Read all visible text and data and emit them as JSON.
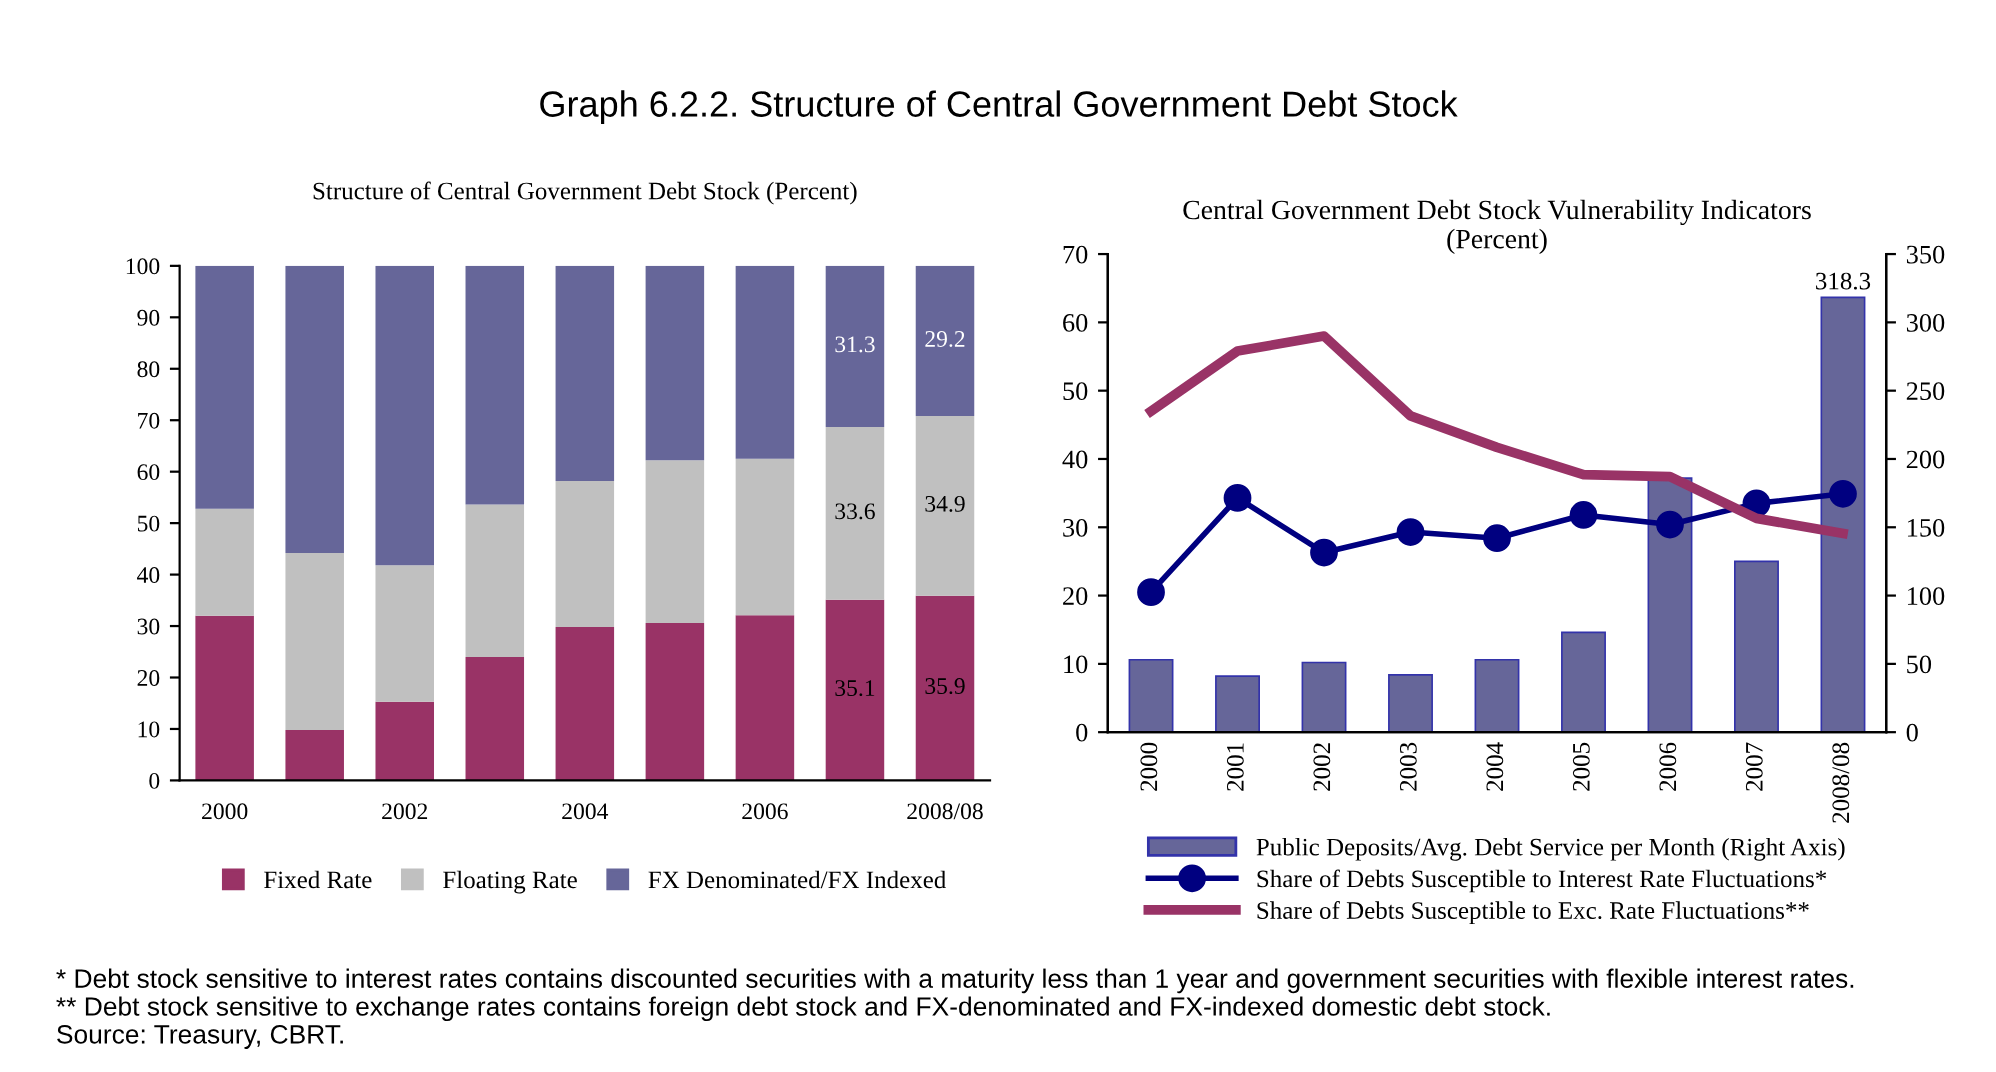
{
  "chart_data": [
    {
      "type": "bar",
      "title": "Graph 6.2.2. Structure of Central Government Debt Stock",
      "subtitle": "Structure of Central Government Debt Stock (Percent)",
      "categories": [
        "2000",
        null,
        "2002",
        null,
        "2004",
        null,
        "2006",
        null,
        "2008/08"
      ],
      "stacked": true,
      "ylim": [
        0,
        100
      ],
      "yticks": [
        0,
        10,
        20,
        30,
        40,
        50,
        60,
        70,
        80,
        90,
        100
      ],
      "grid": false,
      "legend": "bottom",
      "series": [
        {
          "name": "Fixed Rate",
          "color": "#993366",
          "values": [
            32.0,
            9.8,
            15.3,
            24.0,
            29.8,
            30.6,
            32.1,
            35.1,
            35.9
          ],
          "value_labels": [
            null,
            null,
            null,
            null,
            null,
            null,
            null,
            "35.1",
            "35.9"
          ]
        },
        {
          "name": "Floating Rate",
          "color": "#c0c0c0",
          "values": [
            20.8,
            34.4,
            26.5,
            29.6,
            28.4,
            31.6,
            30.4,
            33.6,
            34.9
          ],
          "value_labels": [
            null,
            null,
            null,
            null,
            null,
            null,
            null,
            "33.6",
            "34.9"
          ]
        },
        {
          "name": "FX Denominated/FX Indexed",
          "color": "#666699",
          "values": [
            47.2,
            55.8,
            58.2,
            46.4,
            41.8,
            37.8,
            37.5,
            31.3,
            29.2
          ],
          "value_labels": [
            null,
            null,
            null,
            null,
            null,
            null,
            null,
            "31.3",
            "29.2"
          ]
        }
      ],
      "annotations": [
        "* Debt stock sensitive to interest rates contains discounted securities with a maturity less than 1 year and government securities with flexible interest rates.",
        "** Debt stock sensitive to exchange rates contains foreign debt stock and FX-denominated and FX-indexed domestic debt stock.",
        "Source: Treasury, CBRT."
      ]
    },
    {
      "type": "line",
      "title": "Central Government Debt Stock Vulnerability Indicators\n(Percent)",
      "categories": [
        "2000",
        "2001",
        "2002",
        "2003",
        "2004",
        "2005",
        "2006",
        "2007",
        "2008/08"
      ],
      "ylim": [
        0,
        70
      ],
      "yticks": [
        0,
        10,
        20,
        30,
        40,
        50,
        60,
        70
      ],
      "y2lim": [
        0,
        350
      ],
      "y2ticks": [
        0,
        50,
        100,
        150,
        200,
        250,
        300,
        350
      ],
      "grid": false,
      "legend": "bottom",
      "series": [
        {
          "name": "Public Deposits/Avg. Debt Service per Month (Right Axis)",
          "type": "bar",
          "axis": "y2",
          "color": "#666699",
          "values": [
            53,
            41,
            51,
            42,
            53,
            73,
            186,
            125,
            318.3
          ],
          "value_labels": [
            null,
            null,
            null,
            null,
            null,
            null,
            null,
            null,
            "318.3"
          ]
        },
        {
          "name": "Share of Debts Susceptible to Interest Rate Fluctuations*",
          "type": "line",
          "marker": "circle",
          "color": "#000080",
          "values": [
            20.5,
            34.3,
            26.3,
            29.3,
            28.4,
            31.8,
            30.4,
            33.5,
            34.9
          ]
        },
        {
          "name": "Share of Debts Susceptible to Exc. Rate Fluctuations**",
          "type": "line",
          "marker": "none",
          "color": "#993366",
          "values": [
            47.0,
            55.8,
            58.0,
            46.3,
            41.7,
            37.7,
            37.4,
            31.3,
            29.1
          ]
        }
      ]
    }
  ]
}
